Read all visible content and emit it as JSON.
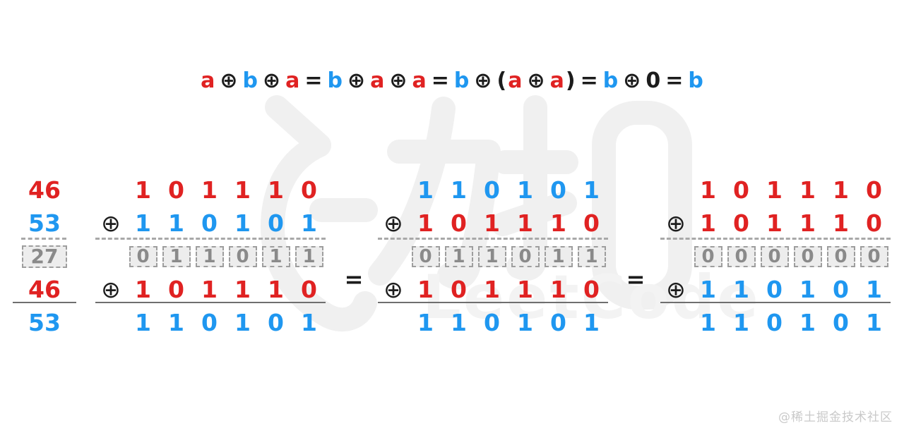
{
  "title": {
    "segments": [
      {
        "text": "a",
        "color": "red"
      },
      {
        "text": "⊕",
        "color": "black"
      },
      {
        "text": "b",
        "color": "blue"
      },
      {
        "text": "⊕",
        "color": "black"
      },
      {
        "text": "a",
        "color": "red"
      },
      {
        "text": "=",
        "color": "black"
      },
      {
        "text": "b",
        "color": "blue"
      },
      {
        "text": "⊕",
        "color": "black"
      },
      {
        "text": "a",
        "color": "red"
      },
      {
        "text": "⊕",
        "color": "black"
      },
      {
        "text": "a",
        "color": "red"
      },
      {
        "text": "=",
        "color": "black"
      },
      {
        "text": "b",
        "color": "blue"
      },
      {
        "text": "⊕",
        "color": "black"
      },
      {
        "text": "(",
        "color": "black"
      },
      {
        "text": "a",
        "color": "red"
      },
      {
        "text": "⊕",
        "color": "black"
      },
      {
        "text": "a",
        "color": "red"
      },
      {
        "text": ")",
        "color": "black"
      },
      {
        "text": "=",
        "color": "black"
      },
      {
        "text": "b",
        "color": "blue"
      },
      {
        "text": "⊕",
        "color": "black"
      },
      {
        "text": "0",
        "color": "black"
      },
      {
        "text": "=",
        "color": "black"
      },
      {
        "text": "b",
        "color": "blue"
      }
    ]
  },
  "decimal_labels": [
    {
      "value": "46",
      "color": "red",
      "boxed": false
    },
    {
      "value": "53",
      "color": "blue",
      "boxed": false
    },
    {
      "value": "27",
      "color": "gray",
      "boxed": true
    },
    {
      "value": "46",
      "color": "red",
      "boxed": false
    },
    {
      "value": "53",
      "color": "blue",
      "boxed": false
    }
  ],
  "xor_sign": "⊕",
  "equals_sign": "=",
  "groups": [
    {
      "name": "46-xor-53-xor-46",
      "rows": [
        {
          "op": false,
          "color": "red",
          "boxed": false,
          "digits": [
            "1",
            "0",
            "1",
            "1",
            "1",
            "0"
          ]
        },
        {
          "op": true,
          "color": "blue",
          "boxed": false,
          "digits": [
            "1",
            "1",
            "0",
            "1",
            "0",
            "1"
          ]
        },
        {
          "op": false,
          "color": "gray",
          "boxed": true,
          "digits": [
            "0",
            "1",
            "1",
            "0",
            "1",
            "1"
          ]
        },
        {
          "op": true,
          "color": "red",
          "boxed": false,
          "digits": [
            "1",
            "0",
            "1",
            "1",
            "1",
            "0"
          ]
        },
        {
          "op": false,
          "color": "blue",
          "boxed": false,
          "digits": [
            "1",
            "1",
            "0",
            "1",
            "0",
            "1"
          ]
        }
      ]
    },
    {
      "name": "53-xor-46-xor-46",
      "rows": [
        {
          "op": false,
          "color": "blue",
          "boxed": false,
          "digits": [
            "1",
            "1",
            "0",
            "1",
            "0",
            "1"
          ]
        },
        {
          "op": true,
          "color": "red",
          "boxed": false,
          "digits": [
            "1",
            "0",
            "1",
            "1",
            "1",
            "0"
          ]
        },
        {
          "op": false,
          "color": "gray",
          "boxed": true,
          "digits": [
            "0",
            "1",
            "1",
            "0",
            "1",
            "1"
          ]
        },
        {
          "op": true,
          "color": "red",
          "boxed": false,
          "digits": [
            "1",
            "0",
            "1",
            "1",
            "1",
            "0"
          ]
        },
        {
          "op": false,
          "color": "blue",
          "boxed": false,
          "digits": [
            "1",
            "1",
            "0",
            "1",
            "0",
            "1"
          ]
        }
      ]
    },
    {
      "name": "46-xor-46-xor-53",
      "rows": [
        {
          "op": false,
          "color": "red",
          "boxed": false,
          "digits": [
            "1",
            "0",
            "1",
            "1",
            "1",
            "0"
          ]
        },
        {
          "op": true,
          "color": "red",
          "boxed": false,
          "digits": [
            "1",
            "0",
            "1",
            "1",
            "1",
            "0"
          ]
        },
        {
          "op": false,
          "color": "gray",
          "boxed": true,
          "digits": [
            "0",
            "0",
            "0",
            "0",
            "0",
            "0"
          ]
        },
        {
          "op": true,
          "color": "blue",
          "boxed": false,
          "digits": [
            "1",
            "1",
            "0",
            "1",
            "0",
            "1"
          ]
        },
        {
          "op": false,
          "color": "blue",
          "boxed": false,
          "digits": [
            "1",
            "1",
            "0",
            "1",
            "0",
            "1"
          ]
        }
      ]
    }
  ],
  "watermark": {
    "cn": "力扣",
    "brand": "LeetCode"
  },
  "credit": "@稀土掘金技术社区",
  "colors": {
    "red": "#e02222",
    "blue": "#1f97f0",
    "gray": "#8a8a8a",
    "black": "#1c1c1c"
  }
}
